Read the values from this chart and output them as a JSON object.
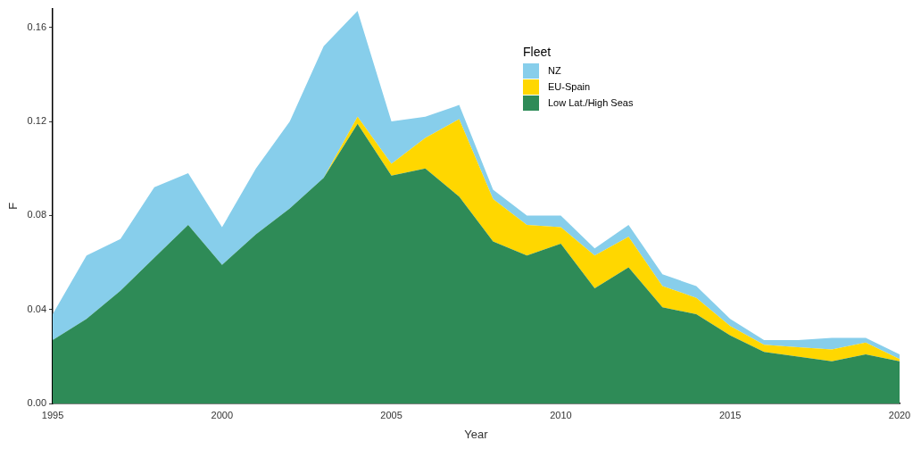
{
  "chart_data": {
    "type": "area",
    "stacked": true,
    "xlabel": "Year",
    "ylabel": "F",
    "legend_title": "Fleet",
    "legend": "top",
    "grid": false,
    "marker": "none",
    "x": [
      1995,
      1996,
      1997,
      1998,
      1999,
      2000,
      2001,
      2002,
      2003,
      2004,
      2005,
      2006,
      2007,
      2008,
      2009,
      2010,
      2011,
      2012,
      2013,
      2014,
      2015,
      2016,
      2017,
      2018,
      2019,
      2020
    ],
    "xlim": [
      1995,
      2020
    ],
    "xticks": [
      1995,
      2000,
      2005,
      2010,
      2015,
      2020
    ],
    "ylim": [
      0,
      0.168
    ],
    "yticks": [
      {
        "value": 0,
        "label": "0.00"
      },
      0.04,
      0.08,
      0.12,
      0.16
    ],
    "series": [
      {
        "name": "Low Lat./High Seas",
        "color": "#2e8b57",
        "values": [
          0.027,
          0.036,
          0.048,
          0.062,
          0.076,
          0.059,
          0.072,
          0.083,
          0.096,
          0.119,
          0.097,
          0.1,
          0.088,
          0.069,
          0.063,
          0.068,
          0.049,
          0.058,
          0.041,
          0.038,
          0.029,
          0.022,
          0.02,
          0.018,
          0.021,
          0.018
        ]
      },
      {
        "name": "EU-Spain",
        "color": "#ffd700",
        "values": [
          0,
          0,
          0,
          0,
          0,
          0,
          0,
          0,
          0,
          0.003,
          0.005,
          0.013,
          0.033,
          0.018,
          0.013,
          0.007,
          0.014,
          0.013,
          0.009,
          0.007,
          0.004,
          0.003,
          0.004,
          0.005,
          0.005,
          0.001
        ]
      },
      {
        "name": "NZ",
        "color": "#87ceeb",
        "values": [
          0.011,
          0.027,
          0.022,
          0.03,
          0.022,
          0.016,
          0.028,
          0.037,
          0.056,
          0.045,
          0.018,
          0.009,
          0.006,
          0.004,
          0.004,
          0.005,
          0.003,
          0.005,
          0.005,
          0.005,
          0.003,
          0.002,
          0.003,
          0.005,
          0.002,
          0.002
        ]
      }
    ]
  }
}
